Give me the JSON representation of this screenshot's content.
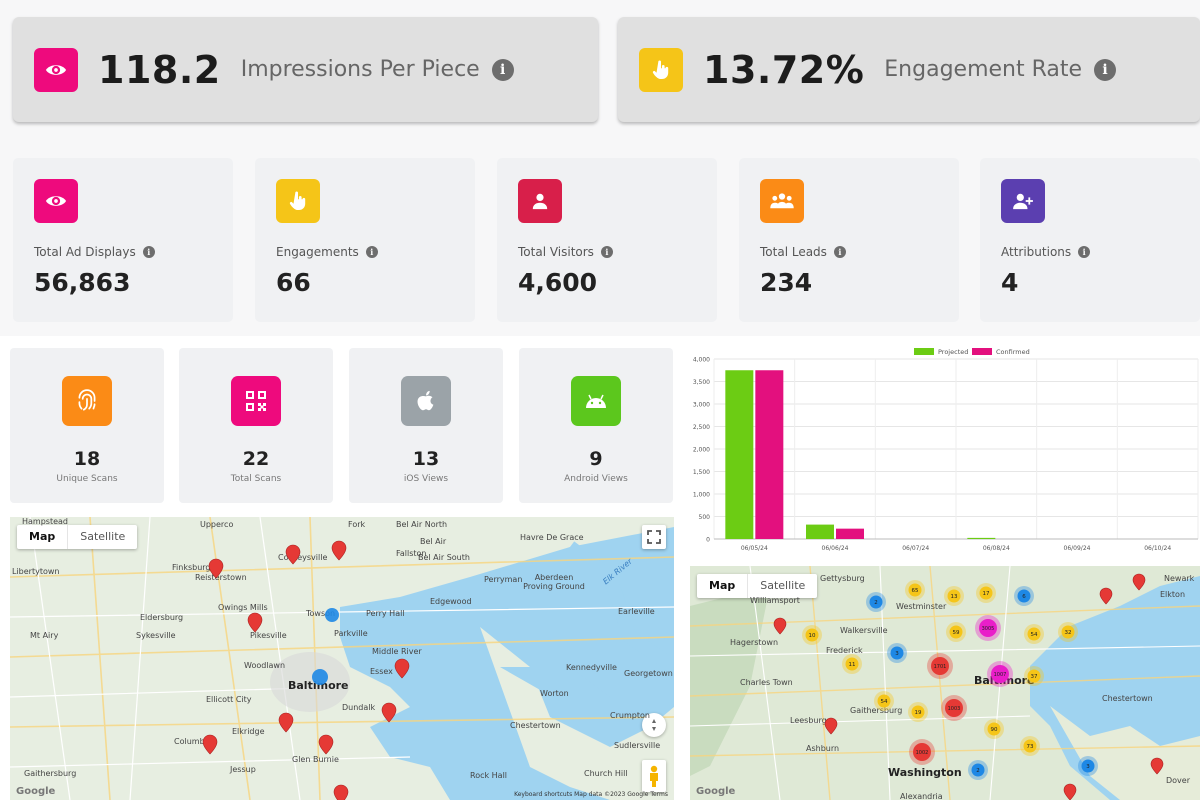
{
  "hero": [
    {
      "value": "118.2",
      "label": "Impressions Per Piece",
      "color": "#ee0a7d",
      "icon": "eye-icon"
    },
    {
      "value": "13.72%",
      "label": "Engagement Rate",
      "color": "#f5c518",
      "icon": "pointer-hand-icon"
    }
  ],
  "cards": [
    {
      "label": "Total Ad Displays",
      "value": "56,863",
      "color": "#ee0a7d",
      "icon": "eye-icon"
    },
    {
      "label": "Engagements",
      "value": "66",
      "color": "#f5c518",
      "icon": "pointer-hand-icon"
    },
    {
      "label": "Total Visitors",
      "value": "4,600",
      "color": "#d81f4a",
      "icon": "user-icon"
    },
    {
      "label": "Total Leads",
      "value": "234",
      "color": "#fb8b16",
      "icon": "group-icon"
    },
    {
      "label": "Attributions",
      "value": "4",
      "color": "#5b3fb0",
      "icon": "user-plus-icon"
    }
  ],
  "small_cards": [
    {
      "value": "18",
      "label": "Unique Scans",
      "color": "#fb8b16",
      "icon": "fingerprint-icon"
    },
    {
      "value": "22",
      "label": "Total Scans",
      "color": "#ee0a7d",
      "icon": "qr-code-icon"
    },
    {
      "value": "13",
      "label": "iOS Views",
      "color": "#9ba3a8",
      "icon": "apple-icon"
    },
    {
      "value": "9",
      "label": "Android Views",
      "color": "#5cc71d",
      "icon": "android-icon"
    }
  ],
  "chart_data": {
    "type": "bar",
    "categories": [
      "06/05/24",
      "06/06/24",
      "06/07/24",
      "06/08/24",
      "06/09/24",
      "06/10/24"
    ],
    "series": [
      {
        "name": "Projected",
        "color": "#6ccc14",
        "values": [
          3750,
          320,
          0,
          25,
          0,
          0
        ]
      },
      {
        "name": "Confirmed",
        "color": "#e3107e",
        "values": [
          3750,
          230,
          0,
          0,
          0,
          0
        ]
      }
    ],
    "ylim": [
      0,
      4000
    ],
    "yticks": [
      "0",
      "500",
      "1,000",
      "1,500",
      "2,000",
      "2,500",
      "3,000",
      "3,500",
      "4,000"
    ],
    "grid": true,
    "legend": "top-center"
  },
  "map_left": {
    "toggle": [
      "Map",
      "Satellite"
    ],
    "labels": {
      "city": "Baltimore",
      "places": [
        "Hampstead",
        "Upperco",
        "Fork",
        "Bel Air North",
        "Bel Air",
        "Havre De Grace",
        "Libertytown",
        "Finksburg",
        "Reisterstown",
        "Cockeysville",
        "Fallston",
        "Bel Air South",
        "Aberdeen Proving Ground",
        "Perryman",
        "Owings Mills",
        "Towson",
        "Perry Hall",
        "Edgewood",
        "Earleville",
        "Mt Airy",
        "Eldersburg",
        "Sykesville",
        "Pikesville",
        "Parkville",
        "Woodlawn",
        "Middle River",
        "Essex",
        "Georgetown",
        "Ellicott City",
        "Dundalk",
        "Kennedyville",
        "Worton",
        "Chestertown",
        "Rock Hall",
        "Columbia",
        "Elkridge",
        "Glen Burnie",
        "Jessup",
        "Gaithersburg",
        "Crumpton",
        "Sudlersville",
        "Church Hill"
      ],
      "water": "Elk River"
    },
    "footer": "Keyboard shortcuts   Map data ©2023 Google   Terms",
    "google": "Google"
  },
  "map_right": {
    "toggle": [
      "Map",
      "Satellite"
    ],
    "labels": {
      "city1": "Baltimore",
      "city2": "Washington",
      "places": [
        "Gettysburg",
        "Williamsport",
        "Hagerstown",
        "Westminster",
        "Walkersville",
        "Frederick",
        "Charles Town",
        "Leesburg",
        "Gaithersburg",
        "Chestertown",
        "Newark",
        "Elkton",
        "Alexandria",
        "Ashburn",
        "Dover"
      ]
    },
    "clusters": [
      "65",
      "13",
      "17",
      "6",
      "10",
      "59",
      "3005",
      "54",
      "32",
      "2",
      "11",
      "3",
      "1701",
      "1007",
      "37",
      "54",
      "19",
      "1003",
      "90",
      "73",
      "1002",
      "2",
      "3"
    ],
    "google": "Google"
  }
}
